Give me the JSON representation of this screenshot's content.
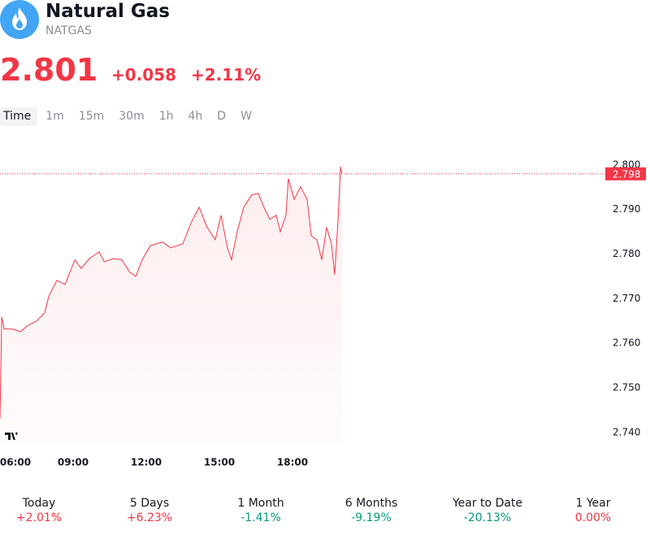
{
  "header": {
    "title": "Natural Gas",
    "symbol": "NATGAS"
  },
  "quote": {
    "price": "2.801",
    "change": "+0.058",
    "change_percent": "+2.11%"
  },
  "tabs": [
    "Time",
    "1m",
    "15m",
    "30m",
    "1h",
    "4h",
    "D",
    "W"
  ],
  "chart_data": {
    "type": "line",
    "color": "#f23645",
    "x": [
      6,
      6.07,
      6.17,
      6.5,
      6.83,
      7.17,
      7.5,
      7.83,
      8,
      8.33,
      8.67,
      9.07,
      9.33,
      9.67,
      10.07,
      10.27,
      10.67,
      11,
      11.33,
      11.57,
      11.83,
      12.17,
      12.67,
      13,
      13.5,
      13.83,
      14.17,
      14.5,
      14.83,
      15.07,
      15.33,
      15.5,
      15.73,
      16,
      16.33,
      16.6,
      16.83,
      17.07,
      17.33,
      17.5,
      17.73,
      17.83,
      18.07,
      18.33,
      18.6,
      18.77,
      19,
      19.2,
      19.4,
      19.6,
      19.73,
      19.87,
      19.97,
      20.03
    ],
    "values": [
      2.7431,
      2.7659,
      2.7632,
      2.7632,
      2.7626,
      2.7641,
      2.765,
      2.7668,
      2.7705,
      2.7741,
      2.7732,
      2.7787,
      2.7768,
      2.779,
      2.7805,
      2.7783,
      2.779,
      2.7787,
      2.7759,
      2.775,
      2.7787,
      2.7819,
      2.7827,
      2.7814,
      2.7823,
      2.7869,
      2.7905,
      2.786,
      2.7832,
      2.7887,
      2.7814,
      2.7787,
      2.785,
      2.7905,
      2.7933,
      2.7936,
      2.7905,
      2.7878,
      2.7887,
      2.785,
      2.7887,
      2.7969,
      2.7923,
      2.7951,
      2.7923,
      2.7841,
      2.7832,
      2.7787,
      2.786,
      2.7823,
      2.7754,
      2.7878,
      2.7996,
      2.798
    ],
    "xlim": [
      6,
      30.8
    ],
    "xticks": [
      {
        "value": 6,
        "label": "06:00"
      },
      {
        "value": 9,
        "label": "09:00"
      },
      {
        "value": 12,
        "label": "12:00"
      },
      {
        "value": 15,
        "label": "15:00"
      },
      {
        "value": 18,
        "label": "18:00"
      }
    ],
    "ylim": [
      2.7376,
      2.8069
    ],
    "yticks": [
      {
        "value": 2.74,
        "label": "2.740"
      },
      {
        "value": 2.75,
        "label": "2.750"
      },
      {
        "value": 2.76,
        "label": "2.760"
      },
      {
        "value": 2.77,
        "label": "2.770"
      },
      {
        "value": 2.78,
        "label": "2.780"
      },
      {
        "value": 2.79,
        "label": "2.790"
      },
      {
        "value": 2.8,
        "label": "2.800"
      }
    ],
    "last_price": {
      "value": 2.798,
      "label": "2.798"
    }
  },
  "performance": [
    {
      "label": "Today",
      "value": "+2.01%",
      "color": "#f23645"
    },
    {
      "label": "5 Days",
      "value": "+6.23%",
      "color": "#f23645"
    },
    {
      "label": "1 Month",
      "value": "-1.41%",
      "color": "#089981"
    },
    {
      "label": "6 Months",
      "value": "-9.19%",
      "color": "#089981"
    },
    {
      "label": "Year to Date",
      "value": "-20.13%",
      "color": "#089981"
    },
    {
      "label": "1 Year",
      "value": "0.00%",
      "color": "#f23645"
    }
  ]
}
